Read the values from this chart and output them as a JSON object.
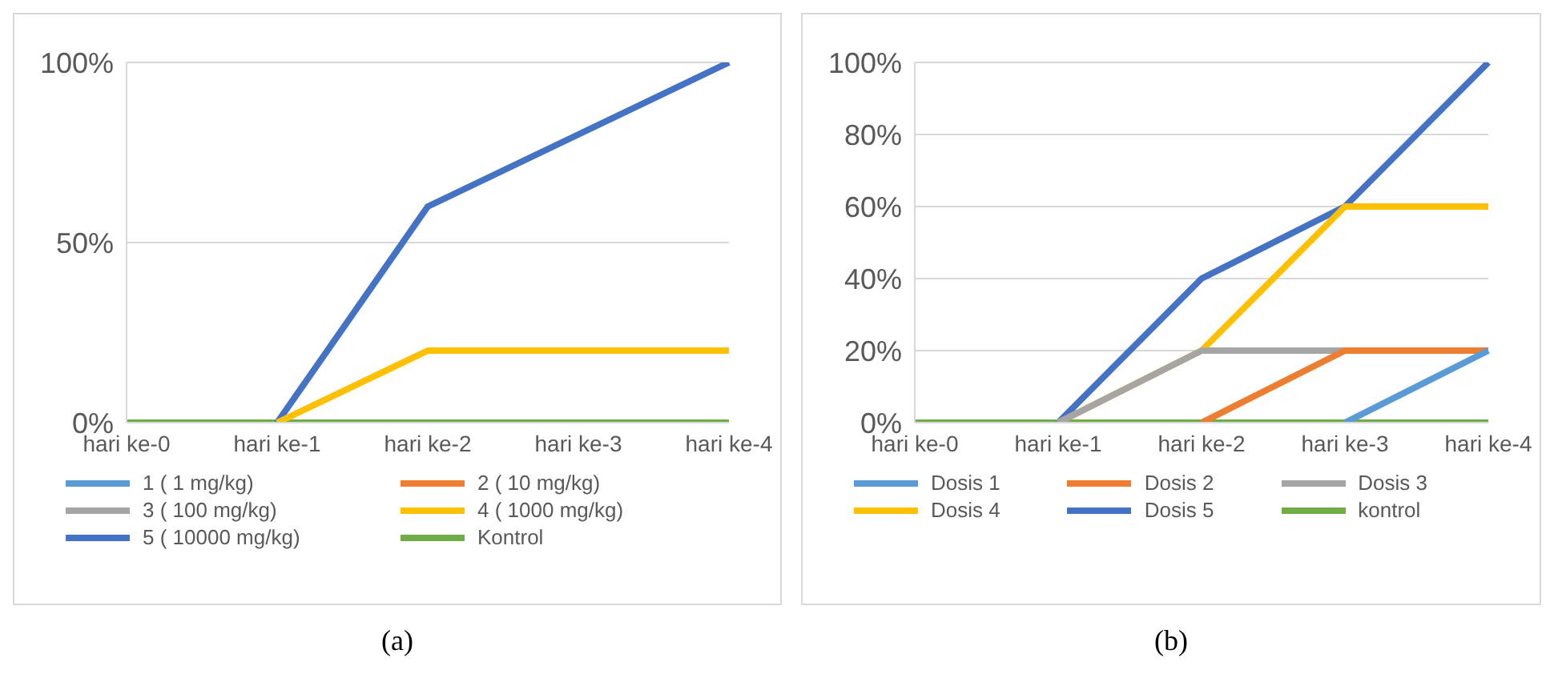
{
  "chart_data": [
    {
      "type": "line",
      "categories": [
        "hari ke-0",
        "hari ke-1",
        "hari ke-2",
        "hari ke-3",
        "hari ke-4"
      ],
      "ylim": [
        0,
        100
      ],
      "yticks": [
        {
          "value": 0,
          "label": "0%"
        },
        {
          "value": 50,
          "label": "50%"
        },
        {
          "value": 100,
          "label": "100%"
        }
      ],
      "grid": "y",
      "legend": "bottom",
      "marker": "none",
      "line_style": "solid",
      "annotations": [
        "(a)"
      ],
      "series": [
        {
          "name": "1 ( 1 mg/kg)",
          "color": "#5b9bd5",
          "values": [
            null,
            null,
            null,
            null,
            null
          ]
        },
        {
          "name": "2 ( 10 mg/kg)",
          "color": "#ed7d31",
          "values": [
            null,
            null,
            null,
            null,
            null
          ]
        },
        {
          "name": "3 ( 100 mg/kg)",
          "color": "#a5a5a5",
          "values": [
            null,
            null,
            null,
            null,
            null
          ]
        },
        {
          "name": "4 ( 1000 mg/kg)",
          "color": "#ffc000",
          "values": [
            null,
            0,
            20,
            20,
            20
          ]
        },
        {
          "name": "5 ( 10000 mg/kg)",
          "color": "#4472c4",
          "values": [
            null,
            0,
            60,
            80,
            100
          ]
        },
        {
          "name": "Kontrol",
          "color": "#70ad47",
          "values": [
            0,
            0,
            0,
            0,
            0
          ]
        }
      ]
    },
    {
      "type": "line",
      "categories": [
        "hari ke-0",
        "hari ke-1",
        "hari ke-2",
        "hari ke-3",
        "hari ke-4"
      ],
      "ylim": [
        0,
        100
      ],
      "yticks": [
        {
          "value": 0,
          "label": "0%"
        },
        {
          "value": 20,
          "label": "20%"
        },
        {
          "value": 40,
          "label": "40%"
        },
        {
          "value": 60,
          "label": "60%"
        },
        {
          "value": 80,
          "label": "80%"
        },
        {
          "value": 100,
          "label": "100%"
        }
      ],
      "grid": "y",
      "legend": "bottom",
      "marker": "none",
      "line_style": "solid",
      "annotations": [
        "(b)"
      ],
      "series": [
        {
          "name": "Dosis 1",
          "color": "#5b9bd5",
          "values": [
            null,
            null,
            null,
            0,
            20
          ]
        },
        {
          "name": "Dosis 2",
          "color": "#ed7d31",
          "values": [
            null,
            null,
            0,
            20,
            20
          ]
        },
        {
          "name": "Dosis 3",
          "color": "#a5a5a5",
          "values": [
            null,
            0,
            20,
            20,
            20
          ]
        },
        {
          "name": "Dosis 4",
          "color": "#ffc000",
          "values": [
            null,
            0,
            20,
            60,
            60
          ]
        },
        {
          "name": "Dosis 5",
          "color": "#4472c4",
          "values": [
            null,
            0,
            40,
            60,
            100
          ]
        },
        {
          "name": "kontrol",
          "color": "#70ad47",
          "values": [
            0,
            0,
            0,
            0,
            0
          ]
        }
      ]
    }
  ]
}
